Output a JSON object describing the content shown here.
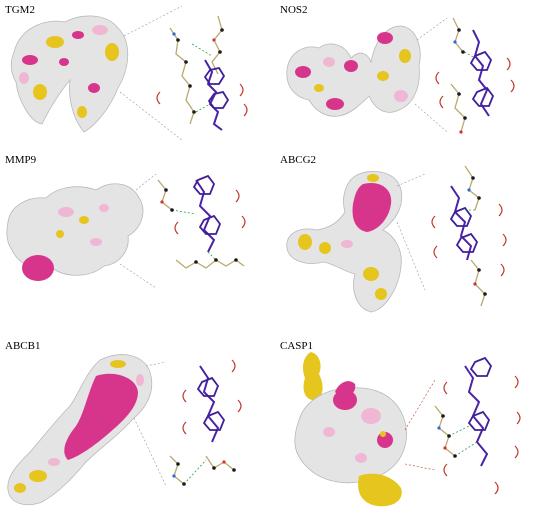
{
  "panels": [
    {
      "label": "TGM2"
    },
    {
      "label": "NOS2"
    },
    {
      "label": "MMP9"
    },
    {
      "label": "ABCG2"
    },
    {
      "label": "ABCB1"
    },
    {
      "label": "CASP1"
    }
  ],
  "colors": {
    "surface": "#e4e4e4",
    "surface_edge": "#b9b9b9",
    "pink": "#d7358c",
    "light_pink": "#efb7d3",
    "yellow": "#e6c51e",
    "ligand": "#4b22a8",
    "ligand_ring": "#3f1f9a",
    "carbon": "#1a1a1a",
    "chain": "#b9a96b",
    "hbond": "#26a33b",
    "hydrophobic_arc": "#c0392b"
  }
}
